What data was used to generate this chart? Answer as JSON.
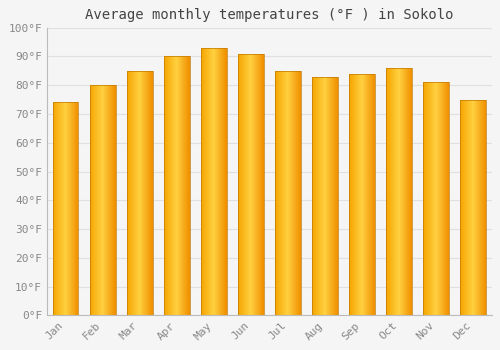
{
  "title": "Average monthly temperatures (°F ) in Sokolo",
  "months": [
    "Jan",
    "Feb",
    "Mar",
    "Apr",
    "May",
    "Jun",
    "Jul",
    "Aug",
    "Sep",
    "Oct",
    "Nov",
    "Dec"
  ],
  "values": [
    74,
    80,
    85,
    90,
    93,
    91,
    85,
    83,
    84,
    86,
    81,
    75
  ],
  "bar_color_left": "#F5A500",
  "bar_color_center": "#FFD040",
  "bar_color_right": "#F09000",
  "bar_outline_color": "#C07800",
  "background_color": "#f5f5f5",
  "grid_color": "#e0e0e0",
  "tick_label_color": "#888888",
  "title_color": "#444444",
  "ylim": [
    0,
    100
  ],
  "yticks": [
    0,
    10,
    20,
    30,
    40,
    50,
    60,
    70,
    80,
    90,
    100
  ],
  "ytick_labels": [
    "0°F",
    "10°F",
    "20°F",
    "30°F",
    "40°F",
    "50°F",
    "60°F",
    "70°F",
    "80°F",
    "90°F",
    "100°F"
  ],
  "title_fontsize": 10,
  "tick_fontsize": 8,
  "font_family": "monospace",
  "bar_width": 0.7,
  "n_segments": 40
}
